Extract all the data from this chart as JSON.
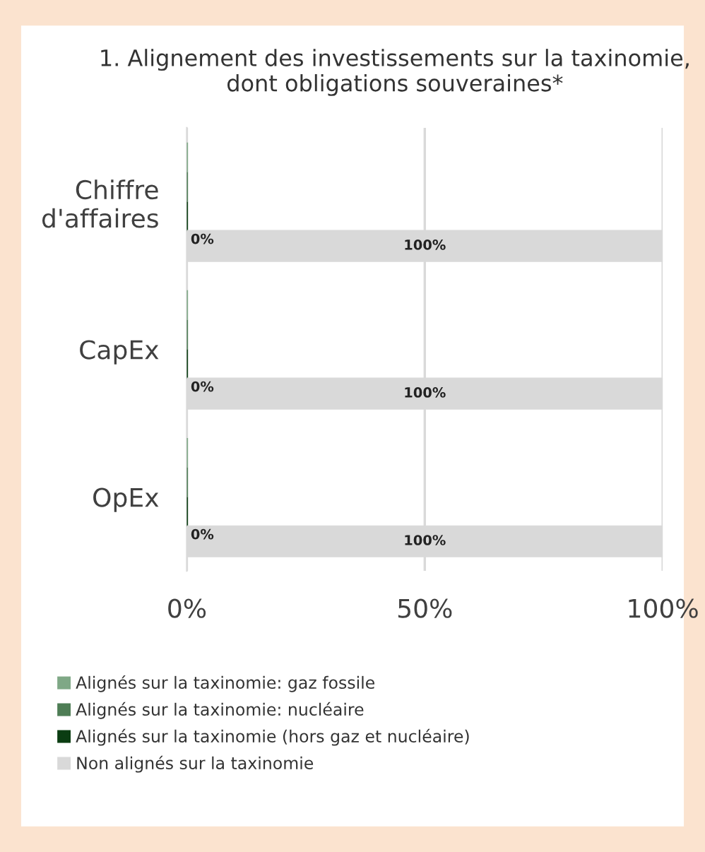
{
  "chart_data": {
    "type": "bar",
    "orientation": "horizontal",
    "title": "1. Alignement des investissements sur la taxinomie, dont obligations souveraines*",
    "categories": [
      "Chiffre\nd'affaires",
      "CapEx",
      "OpEx"
    ],
    "series": [
      {
        "name": "Alignés sur la taxinomie: gaz fossile",
        "color": "#7fa886",
        "values": [
          0,
          0,
          0
        ]
      },
      {
        "name": "Alignés sur la taxinomie: nucléaire",
        "color": "#4e7d55",
        "values": [
          0,
          0,
          0
        ]
      },
      {
        "name": "Alignés sur la taxinomie (hors gaz et nucléaire)",
        "color": "#0b3d12",
        "values": [
          0,
          0,
          0
        ],
        "value_labels": [
          "0%",
          "0%",
          "0%"
        ]
      },
      {
        "name": "Non alignés sur la taxinomie",
        "color": "#d9d9d9",
        "values": [
          100,
          100,
          100
        ],
        "value_labels": [
          "100%",
          "100%",
          "100%"
        ]
      }
    ],
    "xlim": [
      0,
      100
    ],
    "xticks": [
      {
        "value": 0,
        "label": "0%"
      },
      {
        "value": 50,
        "label": "50%"
      },
      {
        "value": 100,
        "label": "100%"
      }
    ],
    "grid": "x",
    "legend": "bottom"
  }
}
